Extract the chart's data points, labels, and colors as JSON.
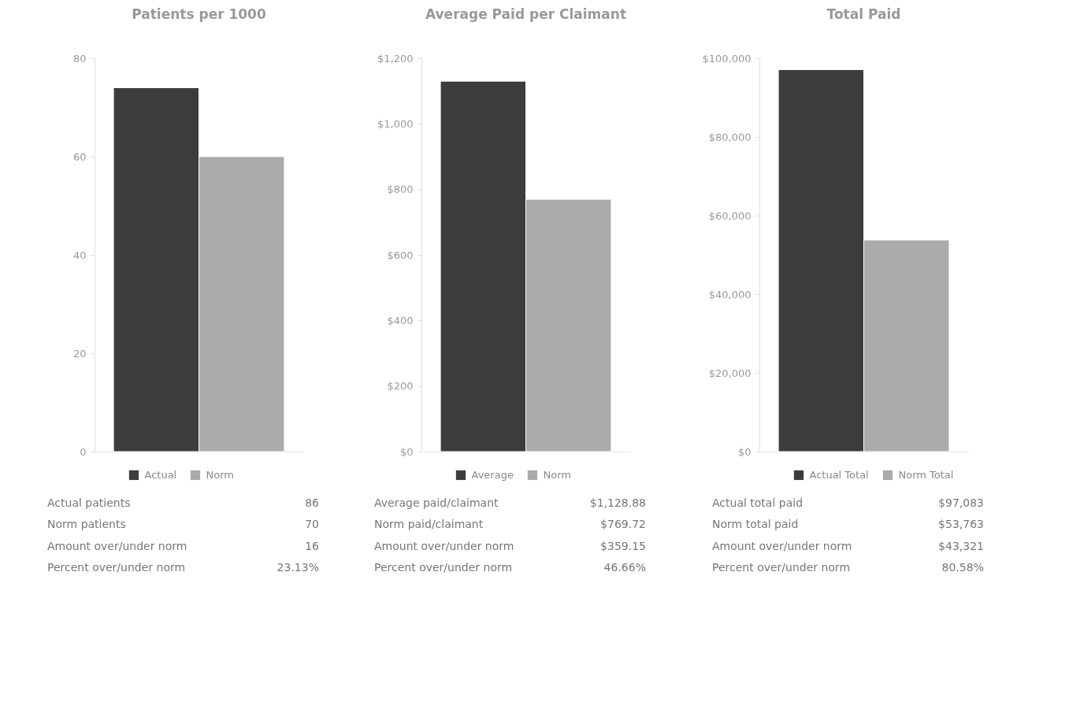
{
  "chart_data": [
    {
      "type": "bar",
      "title": "Patients per 1000",
      "categories": [
        null
      ],
      "ylim": [
        0,
        80
      ],
      "yticks": [
        0,
        20,
        40,
        60,
        80
      ],
      "grid": false,
      "legend": "bottom",
      "tick_labels": "y",
      "series": [
        {
          "name": "Actual",
          "color": "#3c3c3c",
          "values": [
            74
          ]
        },
        {
          "name": "Norm",
          "color": "#ababab",
          "values": [
            60
          ]
        }
      ],
      "annotations": [
        "Actual patients",
        "86",
        "Norm patients",
        "70",
        "Amount over/under norm",
        "16",
        "Percent over/under norm",
        "23.13%"
      ]
    },
    {
      "type": "bar",
      "title": "Average Paid per Claimant",
      "categories": [
        null
      ],
      "ylim": [
        0,
        1200
      ],
      "yticks": [
        {
          "value": 0,
          "label": "$0"
        },
        {
          "value": 200,
          "label": "$200"
        },
        {
          "value": 400,
          "label": "$400"
        },
        {
          "value": 600,
          "label": "$600"
        },
        {
          "value": 800,
          "label": "$800"
        },
        {
          "value": 1000,
          "label": "$1,000"
        },
        {
          "value": 1200,
          "label": "$1,200"
        }
      ],
      "grid": false,
      "legend": "bottom",
      "tick_labels": "y",
      "series": [
        {
          "name": "Average",
          "color": "#3c3c3c",
          "values": [
            1130
          ]
        },
        {
          "name": "Norm",
          "color": "#ababab",
          "values": [
            770
          ]
        }
      ],
      "annotations": [
        "Average paid/claimant",
        "$1,128.88",
        "Norm paid/claimant",
        "$769.72",
        "Amount over/under norm",
        "$359.15",
        "Percent over/under norm",
        "46.66%"
      ]
    },
    {
      "type": "bar",
      "title": "Total Paid",
      "categories": [
        null
      ],
      "ylim": [
        0,
        100000
      ],
      "yticks": [
        {
          "value": 0,
          "label": "$0"
        },
        {
          "value": 20000,
          "label": "$20,000"
        },
        {
          "value": 40000,
          "label": "$40,000"
        },
        {
          "value": 60000,
          "label": "$60,000"
        },
        {
          "value": 80000,
          "label": "$80,000"
        },
        {
          "value": 100000,
          "label": "$100,000"
        }
      ],
      "grid": false,
      "legend": "bottom",
      "tick_labels": "y",
      "series": [
        {
          "name": "Actual Total",
          "color": "#3c3c3c",
          "values": [
            97100
          ]
        },
        {
          "name": "Norm Total",
          "color": "#ababab",
          "values": [
            53800
          ]
        }
      ],
      "annotations": [
        "Actual total paid",
        "$97,083",
        "Norm total paid",
        "$53,763",
        "Amount over/under norm",
        "$43,321",
        "Percent over/under norm",
        "80.58%"
      ]
    }
  ]
}
